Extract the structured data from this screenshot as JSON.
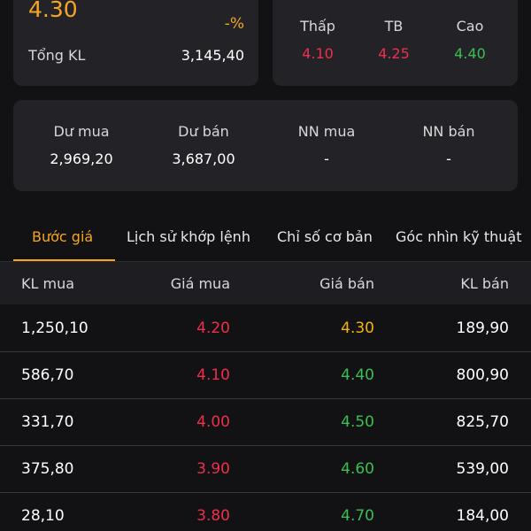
{
  "summary": {
    "price": "4.30",
    "change_pct": "-%",
    "total_volume_label": "Tổng KL",
    "total_volume": "3,145,40"
  },
  "range": {
    "low_label": "Thấp",
    "low_value": "4.10",
    "avg_label": "TB",
    "avg_value": "4.25",
    "high_label": "Cao",
    "high_value": "4.40"
  },
  "volume": {
    "buy_remaining_label": "Dư mua",
    "buy_remaining": "2,969,20",
    "sell_remaining_label": "Dư bán",
    "sell_remaining": "3,687,00",
    "foreign_buy_label": "NN mua",
    "foreign_buy": "-",
    "foreign_sell_label": "NN bán",
    "foreign_sell": "-"
  },
  "tabs": [
    {
      "label": "Bước giá",
      "active": true
    },
    {
      "label": "Lịch sử khớp lệnh",
      "active": false
    },
    {
      "label": "Chỉ số cơ bản",
      "active": false
    },
    {
      "label": "Góc nhìn kỹ thuật",
      "active": false
    }
  ],
  "order_book": {
    "headers": {
      "buy_volume": "KL mua",
      "buy_price": "Giá mua",
      "sell_price": "Giá bán",
      "sell_volume": "KL bán"
    },
    "rows": [
      {
        "buy_volume": "1,250,10",
        "buy_price": "4.20",
        "sell_price": "4.30",
        "sell_volume": "189,90"
      },
      {
        "buy_volume": "586,70",
        "buy_price": "4.10",
        "sell_price": "4.40",
        "sell_volume": "800,90"
      },
      {
        "buy_volume": "331,70",
        "buy_price": "4.00",
        "sell_price": "4.50",
        "sell_volume": "825,70"
      },
      {
        "buy_volume": "375,80",
        "buy_price": "3.90",
        "sell_price": "4.60",
        "sell_volume": "539,00"
      },
      {
        "buy_volume": "28,10",
        "buy_price": "3.80",
        "sell_price": "4.70",
        "sell_volume": "184,00"
      }
    ]
  },
  "colors": {
    "accent": "#f5a623",
    "down": "#ee2f4d",
    "up": "#3bbf53",
    "reference": "#f5b400"
  }
}
